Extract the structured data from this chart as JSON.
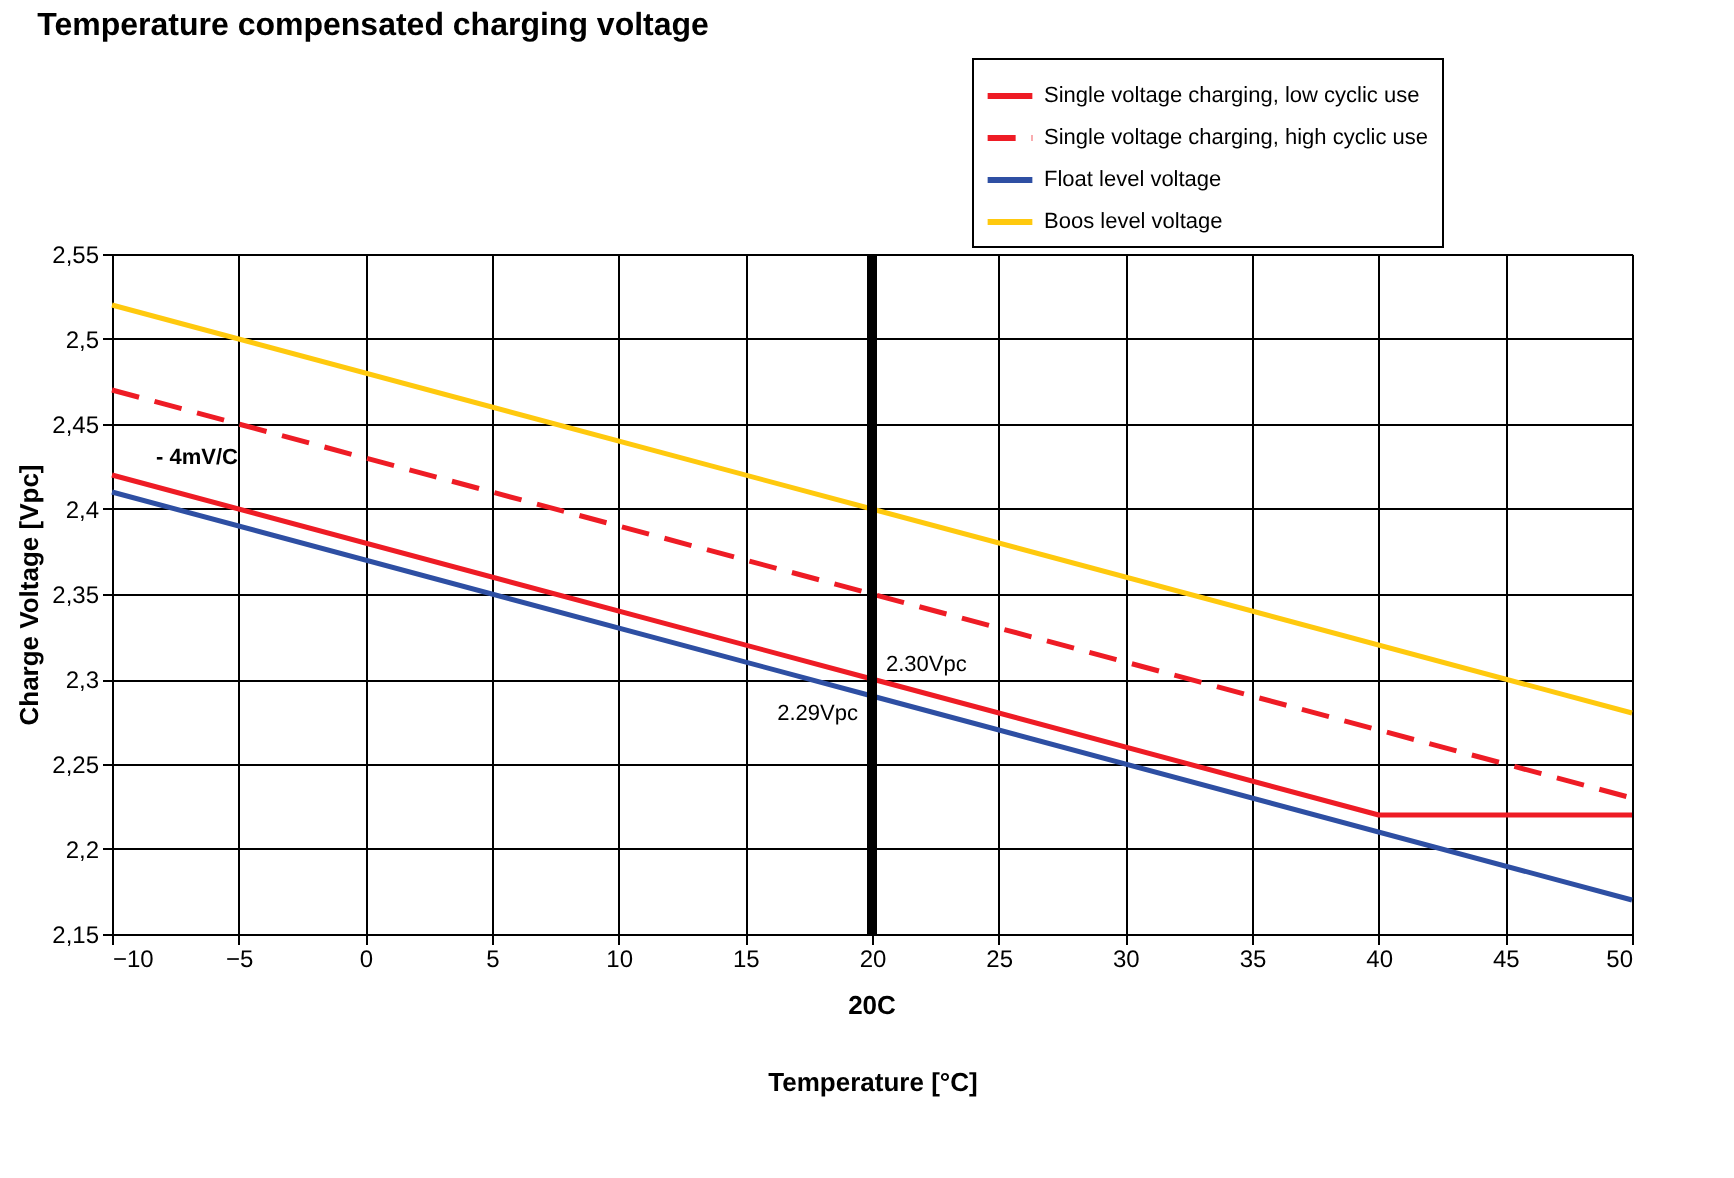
{
  "chart_data": {
    "type": "line",
    "title": "Temperature compensated charging voltage",
    "xlabel": "Temperature [°C]",
    "ylabel": "Charge Voltage  [Vpc]",
    "series": [
      {
        "name": "Single voltage charging, low cyclic use",
        "color": "#ee1c25",
        "x": [
          -10,
          20,
          40,
          50
        ],
        "values": [
          2.42,
          2.3,
          2.22,
          2.22
        ]
      },
      {
        "name": "Single voltage charging, high cyclic use",
        "color": "#ee1c25",
        "line_style": "dashed",
        "x": [
          -10,
          20,
          50
        ],
        "values": [
          2.47,
          2.35,
          2.23
        ]
      },
      {
        "name": "Float level voltage",
        "color": "#2e4fa3",
        "x": [
          -10,
          20,
          50
        ],
        "values": [
          2.41,
          2.29,
          2.17
        ]
      },
      {
        "name": "Boos level voltage",
        "color": "#ffc90e",
        "x": [
          -10,
          20,
          50
        ],
        "values": [
          2.52,
          2.4,
          2.28
        ]
      }
    ],
    "xlim": [
      -10,
      50
    ],
    "xticks": [
      -10,
      -5,
      0,
      5,
      10,
      15,
      20,
      25,
      30,
      35,
      40,
      45,
      50
    ],
    "ylim": [
      2.15,
      2.55
    ],
    "yticks": [
      {
        "value": 2.15,
        "label": "2,15"
      },
      {
        "value": 2.2,
        "label": "2,2"
      },
      {
        "value": 2.25,
        "label": "2,25"
      },
      {
        "value": 2.3,
        "label": "2,3"
      },
      {
        "value": 2.35,
        "label": "2,35"
      },
      {
        "value": 2.4,
        "label": "2,4"
      },
      {
        "value": 2.45,
        "label": "2,45"
      },
      {
        "value": 2.5,
        "label": "2,5"
      },
      {
        "value": 2.55,
        "label": "2,55"
      }
    ],
    "ref_lines": [
      {
        "axis": "x",
        "value": 20,
        "label": "20C",
        "color": "#000000"
      }
    ],
    "annotations": [
      "- 4mV/C",
      {
        "text": "2.29Vpc",
        "x": 20,
        "y": 2.29
      },
      {
        "text": "2.30Vpc",
        "x": 20,
        "y": 2.3
      }
    ],
    "grid": true,
    "legend": "top right",
    "line_style": "solid",
    "marker": "none"
  }
}
